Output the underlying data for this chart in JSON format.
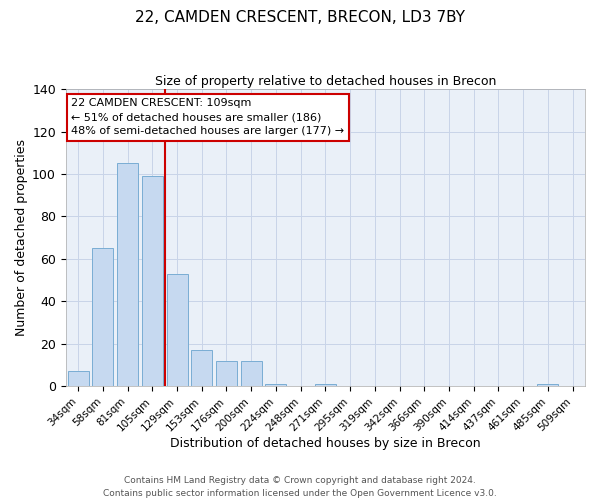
{
  "title": "22, CAMDEN CRESCENT, BRECON, LD3 7BY",
  "subtitle": "Size of property relative to detached houses in Brecon",
  "xlabel": "Distribution of detached houses by size in Brecon",
  "ylabel": "Number of detached properties",
  "bar_labels": [
    "34sqm",
    "58sqm",
    "81sqm",
    "105sqm",
    "129sqm",
    "153sqm",
    "176sqm",
    "200sqm",
    "224sqm",
    "248sqm",
    "271sqm",
    "295sqm",
    "319sqm",
    "342sqm",
    "366sqm",
    "390sqm",
    "414sqm",
    "437sqm",
    "461sqm",
    "485sqm",
    "509sqm"
  ],
  "bar_values": [
    7,
    65,
    105,
    99,
    53,
    17,
    12,
    12,
    1,
    0,
    1,
    0,
    0,
    0,
    0,
    0,
    0,
    0,
    0,
    1,
    0
  ],
  "bar_color": "#c6d9f0",
  "bar_edge_color": "#7aadd4",
  "vline_color": "#cc0000",
  "vline_x_index": 3,
  "annotation_title": "22 CAMDEN CRESCENT: 109sqm",
  "annotation_line1": "← 51% of detached houses are smaller (186)",
  "annotation_line2": "48% of semi-detached houses are larger (177) →",
  "annotation_box_color": "#ffffff",
  "annotation_box_edge": "#cc0000",
  "ylim": [
    0,
    140
  ],
  "yticks": [
    0,
    20,
    40,
    60,
    80,
    100,
    120,
    140
  ],
  "grid_color": "#c8d4e8",
  "bg_color": "#eaf0f8",
  "footer1": "Contains HM Land Registry data © Crown copyright and database right 2024.",
  "footer2": "Contains public sector information licensed under the Open Government Licence v3.0."
}
